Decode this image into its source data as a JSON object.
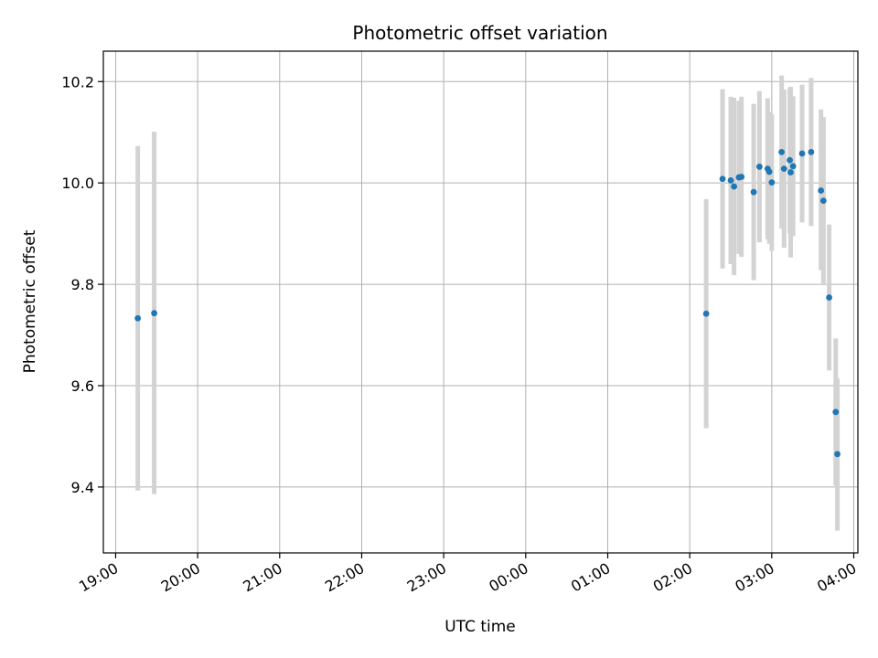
{
  "chart_data": {
    "type": "scatter",
    "title": "Photometric offset variation",
    "xlabel": "UTC time",
    "ylabel": "Photometric offset",
    "x_unit": "hours since 19:00 UTC",
    "xlim": [
      -0.15,
      9.05
    ],
    "ylim": [
      9.27,
      10.26
    ],
    "x_ticks": [
      {
        "value": 0,
        "label": "19:00"
      },
      {
        "value": 1,
        "label": "20:00"
      },
      {
        "value": 2,
        "label": "21:00"
      },
      {
        "value": 3,
        "label": "22:00"
      },
      {
        "value": 4,
        "label": "23:00"
      },
      {
        "value": 5,
        "label": "00:00"
      },
      {
        "value": 6,
        "label": "01:00"
      },
      {
        "value": 7,
        "label": "02:00"
      },
      {
        "value": 8,
        "label": "03:00"
      },
      {
        "value": 9,
        "label": "04:00"
      }
    ],
    "y_ticks": [
      {
        "value": 9.4,
        "label": "9.4"
      },
      {
        "value": 9.6,
        "label": "9.6"
      },
      {
        "value": 9.8,
        "label": "9.8"
      },
      {
        "value": 10.0,
        "label": "10.0"
      },
      {
        "value": 10.2,
        "label": "10.2"
      }
    ],
    "grid": true,
    "point_color": "#1f77b4",
    "errorbar_color": "#d3d3d3",
    "points": [
      {
        "x": 0.27,
        "y": 9.733,
        "lo": 9.393,
        "hi": 10.073
      },
      {
        "x": 0.47,
        "y": 9.743,
        "lo": 9.386,
        "hi": 10.101
      },
      {
        "x": 7.2,
        "y": 9.742,
        "lo": 9.516,
        "hi": 9.968
      },
      {
        "x": 7.4,
        "y": 10.008,
        "lo": 9.831,
        "hi": 10.185
      },
      {
        "x": 7.5,
        "y": 10.005,
        "lo": 9.84,
        "hi": 10.17
      },
      {
        "x": 7.54,
        "y": 9.993,
        "lo": 9.818,
        "hi": 10.168
      },
      {
        "x": 7.6,
        "y": 10.011,
        "lo": 9.86,
        "hi": 10.162
      },
      {
        "x": 7.63,
        "y": 10.012,
        "lo": 9.854,
        "hi": 10.17
      },
      {
        "x": 7.78,
        "y": 9.982,
        "lo": 9.808,
        "hi": 10.156
      },
      {
        "x": 7.85,
        "y": 10.032,
        "lo": 9.883,
        "hi": 10.181
      },
      {
        "x": 7.95,
        "y": 10.028,
        "lo": 9.889,
        "hi": 10.167
      },
      {
        "x": 7.97,
        "y": 10.022,
        "lo": 9.88,
        "hi": 10.14
      },
      {
        "x": 8.0,
        "y": 10.001,
        "lo": 9.866,
        "hi": 10.136
      },
      {
        "x": 8.12,
        "y": 10.061,
        "lo": 9.91,
        "hi": 10.212
      },
      {
        "x": 8.15,
        "y": 10.028,
        "lo": 9.872,
        "hi": 10.184
      },
      {
        "x": 8.22,
        "y": 10.045,
        "lo": 9.9,
        "hi": 10.187
      },
      {
        "x": 8.23,
        "y": 10.021,
        "lo": 9.853,
        "hi": 10.19
      },
      {
        "x": 8.26,
        "y": 10.033,
        "lo": 9.895,
        "hi": 10.171
      },
      {
        "x": 8.37,
        "y": 10.058,
        "lo": 9.922,
        "hi": 10.194
      },
      {
        "x": 8.48,
        "y": 10.061,
        "lo": 9.915,
        "hi": 10.207
      },
      {
        "x": 8.6,
        "y": 9.985,
        "lo": 9.828,
        "hi": 10.145
      },
      {
        "x": 8.63,
        "y": 9.965,
        "lo": 9.798,
        "hi": 10.13
      },
      {
        "x": 8.7,
        "y": 9.774,
        "lo": 9.63,
        "hi": 9.918
      },
      {
        "x": 8.78,
        "y": 9.548,
        "lo": 9.403,
        "hi": 9.693
      },
      {
        "x": 8.8,
        "y": 9.465,
        "lo": 9.314,
        "hi": 9.614
      }
    ]
  }
}
